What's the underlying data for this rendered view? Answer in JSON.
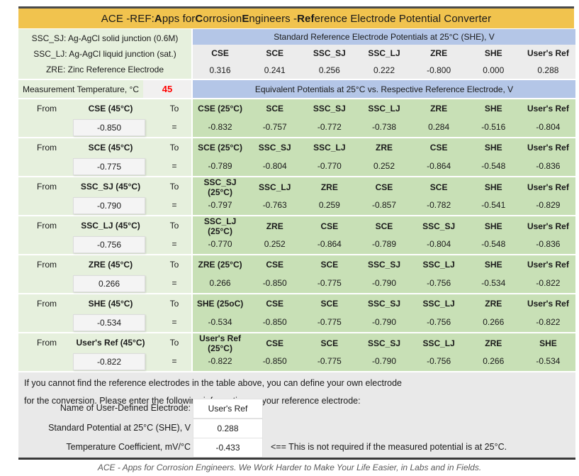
{
  "title": {
    "segments": [
      {
        "text": "ACE -REF: ",
        "bold": false
      },
      {
        "text": "A",
        "bold": true
      },
      {
        "text": "pps for ",
        "bold": false
      },
      {
        "text": "C",
        "bold": true
      },
      {
        "text": "orrosion ",
        "bold": false
      },
      {
        "text": "E",
        "bold": true
      },
      {
        "text": "ngineers - ",
        "bold": false
      },
      {
        "text": "Ref",
        "bold": true
      },
      {
        "text": "erence Electrode Potential Converter",
        "bold": false
      }
    ]
  },
  "legend": {
    "lines": [
      "SSC_SJ: Ag-AgCl solid junction (0.6M)",
      "SSC_LJ: Ag-AgCl liquid junction (sat.)",
      "ZRE: Zinc Reference Electrode"
    ]
  },
  "std_potentials": {
    "header": "Standard Reference Electrode Potentials at 25°C (SHE), V",
    "columns": [
      "CSE",
      "SCE",
      "SSC_SJ",
      "SSC_LJ",
      "ZRE",
      "SHE",
      "User's Ref"
    ],
    "values": [
      "0.316",
      "0.241",
      "0.256",
      "0.222",
      "-0.800",
      "0.000",
      "0.288"
    ]
  },
  "temperature": {
    "label": "Measurement Temperature, °C",
    "value": "45",
    "value_color": "#FF0000"
  },
  "equivalent_header": "Equivalent Potentials at 25°C vs. Respective Reference Electrode, V",
  "conversions": {
    "from_label": "From",
    "to_label": "To",
    "equals": "=",
    "blocks": [
      {
        "from": "CSE (45°C)",
        "input": "-0.850",
        "to_columns": [
          "CSE (25°C)",
          "SCE",
          "SSC_SJ",
          "SSC_LJ",
          "ZRE",
          "SHE",
          "User's Ref"
        ],
        "values": [
          "-0.832",
          "-0.757",
          "-0.772",
          "-0.738",
          "0.284",
          "-0.516",
          "-0.804"
        ]
      },
      {
        "from": "SCE (45°C)",
        "input": "-0.775",
        "to_columns": [
          "SCE (25°C)",
          "SSC_SJ",
          "SSC_LJ",
          "ZRE",
          "CSE",
          "SHE",
          "User's Ref"
        ],
        "values": [
          "-0.789",
          "-0.804",
          "-0.770",
          "0.252",
          "-0.864",
          "-0.548",
          "-0.836"
        ]
      },
      {
        "from": "SSC_SJ (45°C)",
        "input": "-0.790",
        "to_columns": [
          "SSC_SJ (25°C)",
          "SSC_LJ",
          "ZRE",
          "CSE",
          "SCE",
          "SHE",
          "User's Ref"
        ],
        "values": [
          "-0.797",
          "-0.763",
          "0.259",
          "-0.857",
          "-0.782",
          "-0.541",
          "-0.829"
        ]
      },
      {
        "from": "SSC_LJ (45°C)",
        "input": "-0.756",
        "to_columns": [
          "SSC_LJ (25°C)",
          "ZRE",
          "CSE",
          "SCE",
          "SSC_SJ",
          "SHE",
          "User's Ref"
        ],
        "values": [
          "-0.770",
          "0.252",
          "-0.864",
          "-0.789",
          "-0.804",
          "-0.548",
          "-0.836"
        ]
      },
      {
        "from": "ZRE (45°C)",
        "input": "0.266",
        "to_columns": [
          "ZRE (25°C)",
          "CSE",
          "SCE",
          "SSC_SJ",
          "SSC_LJ",
          "SHE",
          "User's Ref"
        ],
        "values": [
          "0.266",
          "-0.850",
          "-0.775",
          "-0.790",
          "-0.756",
          "-0.534",
          "-0.822"
        ]
      },
      {
        "from": "SHE (45°C)",
        "input": "-0.534",
        "to_columns": [
          "SHE (25oC)",
          "CSE",
          "SCE",
          "SSC_SJ",
          "SSC_LJ",
          "ZRE",
          "User's Ref"
        ],
        "values": [
          "-0.534",
          "-0.850",
          "-0.775",
          "-0.790",
          "-0.756",
          "0.266",
          "-0.822"
        ]
      },
      {
        "from": "User's Ref (45°C)",
        "input": "-0.822",
        "to_columns": [
          "User's Ref (25°C)",
          "CSE",
          "SCE",
          "SSC_SJ",
          "SSC_LJ",
          "ZRE",
          "SHE"
        ],
        "values": [
          "-0.822",
          "-0.850",
          "-0.775",
          "-0.790",
          "-0.756",
          "0.266",
          "-0.534"
        ]
      }
    ]
  },
  "user_defined": {
    "intro_lines": [
      "If you cannot find the reference electrodes in the table above, you can define your own electrode",
      "for the conversion. Please enter the following information on your reference electrode:"
    ],
    "fields": [
      {
        "label": "Name of User-Defined Electrode:",
        "value": "User's Ref",
        "note": ""
      },
      {
        "label": "Standard Potential at 25°C (SHE), V",
        "value": "0.288",
        "note": ""
      },
      {
        "label": "Temperature Coefficient, mV/°C",
        "value": "-0.433",
        "note": "<== This is not required if the measured potential is at 25°C."
      }
    ]
  },
  "footer": "ACE - Apps for Corrosion Engineers. We Work Harder to Make Your Life Easier, in Labs and in Fields.",
  "colors": {
    "title_bg": "#F1C34E",
    "header_blue": "#B4C6E7",
    "panel_light_green": "#E6F0DD",
    "panel_green": "#C8E0B6",
    "table_gray": "#ECECEC",
    "section_gray": "#E9E9E9",
    "temp_value_red": "#FF0000"
  }
}
